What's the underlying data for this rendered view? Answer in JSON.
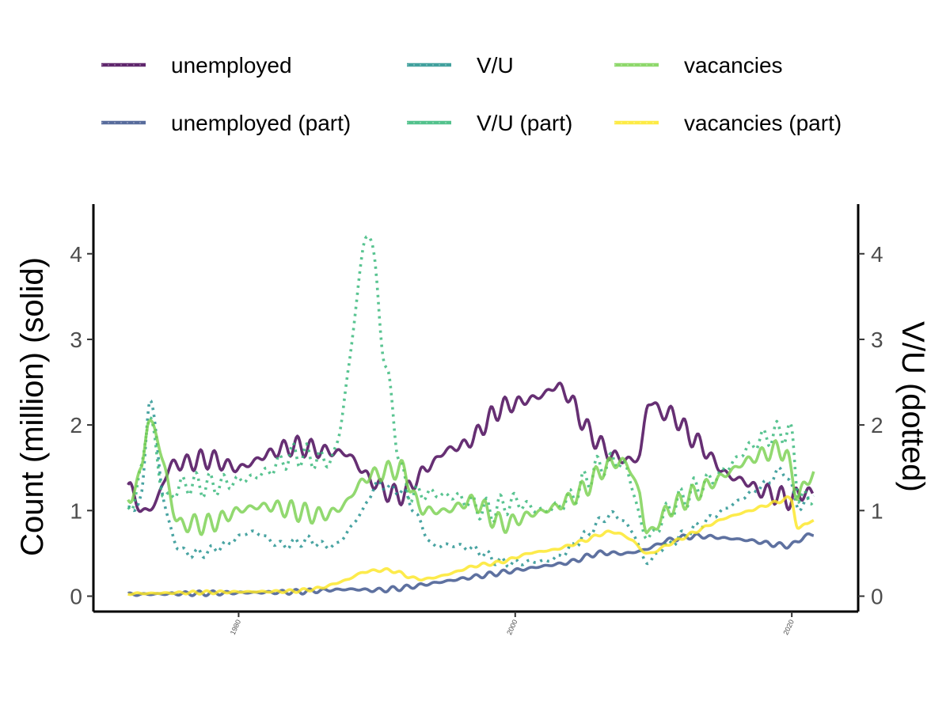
{
  "chart_data": {
    "type": "line",
    "title": "",
    "xlabel": "",
    "ylabel_left": "Count (million) (solid)",
    "ylabel_right": "V/U (dotted)",
    "xlim": [
      1969.5,
      2024.8
    ],
    "ylim": [
      -0.18,
      4.58
    ],
    "x_ticks": [
      1980,
      2000,
      2020
    ],
    "y_ticks": [
      0,
      1,
      2,
      3,
      4
    ],
    "y_ticks_right": [
      0,
      1,
      2,
      3,
      4
    ],
    "grid": false,
    "legend_position": "top",
    "series": [
      {
        "name": "unemployed",
        "axis": "left",
        "line_style": "solid",
        "color": "#440154",
        "wave": 0.12,
        "points": [
          [
            1972.0,
            1.3
          ],
          [
            1973.0,
            1.0
          ],
          [
            1974.0,
            1.1
          ],
          [
            1975.0,
            1.5
          ],
          [
            1976.0,
            1.55
          ],
          [
            1978.0,
            1.6
          ],
          [
            1980.0,
            1.5
          ],
          [
            1982.0,
            1.65
          ],
          [
            1984.0,
            1.75
          ],
          [
            1986.0,
            1.7
          ],
          [
            1988.0,
            1.65
          ],
          [
            1989.0,
            1.45
          ],
          [
            1990.0,
            1.3
          ],
          [
            1991.0,
            1.2
          ],
          [
            1992.0,
            1.2
          ],
          [
            1993.0,
            1.4
          ],
          [
            1994.0,
            1.55
          ],
          [
            1995.0,
            1.7
          ],
          [
            1996.0,
            1.75
          ],
          [
            1997.0,
            1.85
          ],
          [
            1998.0,
            2.05
          ],
          [
            1999.0,
            2.2
          ],
          [
            2000.0,
            2.25
          ],
          [
            2001.0,
            2.3
          ],
          [
            2002.0,
            2.35
          ],
          [
            2003.0,
            2.45
          ],
          [
            2004.0,
            2.3
          ],
          [
            2005.0,
            2.0
          ],
          [
            2006.0,
            1.8
          ],
          [
            2007.0,
            1.65
          ],
          [
            2008.0,
            1.6
          ],
          [
            2009.0,
            1.65
          ],
          [
            2009.6,
            2.25
          ],
          [
            2010.5,
            2.15
          ],
          [
            2011.5,
            2.1
          ],
          [
            2012.5,
            1.9
          ],
          [
            2013.5,
            1.75
          ],
          [
            2014.5,
            1.55
          ],
          [
            2015.5,
            1.4
          ],
          [
            2016.5,
            1.35
          ],
          [
            2017.5,
            1.25
          ],
          [
            2018.5,
            1.2
          ],
          [
            2019.5,
            1.15
          ],
          [
            2020.0,
            1.12
          ],
          [
            2020.5,
            1.2
          ],
          [
            2021.5,
            1.2
          ]
        ]
      },
      {
        "name": "unemployed (part)",
        "axis": "left",
        "line_style": "solid",
        "color": "#3b528b",
        "wave": 0.03,
        "points": [
          [
            1972.0,
            0.02
          ],
          [
            1976.0,
            0.03
          ],
          [
            1980.0,
            0.04
          ],
          [
            1984.0,
            0.05
          ],
          [
            1988.0,
            0.08
          ],
          [
            1990.0,
            0.07
          ],
          [
            1992.0,
            0.1
          ],
          [
            1994.0,
            0.15
          ],
          [
            1996.0,
            0.2
          ],
          [
            1998.0,
            0.25
          ],
          [
            2000.0,
            0.3
          ],
          [
            2002.0,
            0.35
          ],
          [
            2004.0,
            0.4
          ],
          [
            2006.0,
            0.5
          ],
          [
            2008.0,
            0.5
          ],
          [
            2009.5,
            0.55
          ],
          [
            2011.0,
            0.65
          ],
          [
            2013.0,
            0.7
          ],
          [
            2015.0,
            0.68
          ],
          [
            2017.0,
            0.65
          ],
          [
            2019.0,
            0.6
          ],
          [
            2020.0,
            0.6
          ],
          [
            2021.0,
            0.7
          ],
          [
            2021.6,
            0.72
          ]
        ]
      },
      {
        "name": "V/U",
        "axis": "right",
        "line_style": "dotted",
        "color": "#21908d",
        "wave": 0.06,
        "points": [
          [
            1972.0,
            1.0
          ],
          [
            1973.0,
            1.2
          ],
          [
            1973.6,
            2.3
          ],
          [
            1974.5,
            1.2
          ],
          [
            1975.5,
            0.6
          ],
          [
            1977.0,
            0.5
          ],
          [
            1979.0,
            0.6
          ],
          [
            1981.0,
            0.75
          ],
          [
            1983.0,
            0.6
          ],
          [
            1985.0,
            0.65
          ],
          [
            1987.0,
            0.6
          ],
          [
            1989.0,
            1.0
          ],
          [
            1990.0,
            1.3
          ],
          [
            1991.0,
            1.25
          ],
          [
            1992.0,
            1.2
          ],
          [
            1993.0,
            0.9
          ],
          [
            1994.0,
            0.6
          ],
          [
            1995.0,
            0.6
          ],
          [
            1997.0,
            0.55
          ],
          [
            1999.0,
            0.4
          ],
          [
            2001.0,
            0.4
          ],
          [
            2003.0,
            0.45
          ],
          [
            2005.0,
            0.7
          ],
          [
            2007.0,
            0.95
          ],
          [
            2008.5,
            0.75
          ],
          [
            2009.5,
            0.4
          ],
          [
            2010.5,
            0.55
          ],
          [
            2012.0,
            0.7
          ],
          [
            2014.0,
            0.9
          ],
          [
            2016.0,
            1.1
          ],
          [
            2018.0,
            1.3
          ],
          [
            2019.5,
            1.45
          ],
          [
            2020.5,
            1.05
          ],
          [
            2021.6,
            1.2
          ]
        ]
      },
      {
        "name": "V/U (part)",
        "axis": "right",
        "line_style": "dotted",
        "color": "#35b779",
        "wave": 0.15,
        "points": [
          [
            1972.0,
            0.95
          ],
          [
            1973.0,
            1.5
          ],
          [
            1973.6,
            2.1
          ],
          [
            1974.5,
            1.2
          ],
          [
            1976.0,
            1.3
          ],
          [
            1978.0,
            1.3
          ],
          [
            1980.0,
            1.35
          ],
          [
            1982.0,
            1.45
          ],
          [
            1984.0,
            1.65
          ],
          [
            1986.0,
            1.6
          ],
          [
            1987.0,
            1.7
          ],
          [
            1988.0,
            2.7
          ],
          [
            1988.8,
            3.8
          ],
          [
            1989.5,
            4.25
          ],
          [
            1990.3,
            3.1
          ],
          [
            1991.0,
            2.3
          ],
          [
            1992.0,
            1.3
          ],
          [
            1994.0,
            1.2
          ],
          [
            1996.0,
            1.15
          ],
          [
            1998.0,
            1.0
          ],
          [
            2000.0,
            1.1
          ],
          [
            2002.0,
            1.0
          ],
          [
            2004.0,
            1.15
          ],
          [
            2006.0,
            1.5
          ],
          [
            2008.0,
            1.5
          ],
          [
            2009.5,
            0.7
          ],
          [
            2011.0,
            1.0
          ],
          [
            2013.0,
            1.25
          ],
          [
            2015.0,
            1.45
          ],
          [
            2017.0,
            1.75
          ],
          [
            2019.0,
            1.9
          ],
          [
            2020.0,
            1.85
          ],
          [
            2020.5,
            1.2
          ],
          [
            2021.6,
            1.15
          ]
        ]
      },
      {
        "name": "vacancies",
        "axis": "left",
        "line_style": "solid",
        "color": "#7ad151",
        "wave": 0.12,
        "points": [
          [
            1972.0,
            1.1
          ],
          [
            1973.0,
            1.5
          ],
          [
            1973.5,
            2.05
          ],
          [
            1974.5,
            1.6
          ],
          [
            1975.5,
            0.9
          ],
          [
            1976.5,
            0.85
          ],
          [
            1978.0,
            0.85
          ],
          [
            1980.0,
            1.0
          ],
          [
            1982.0,
            1.05
          ],
          [
            1984.0,
            1.0
          ],
          [
            1986.0,
            0.95
          ],
          [
            1987.5,
            1.05
          ],
          [
            1989.0,
            1.35
          ],
          [
            1990.5,
            1.45
          ],
          [
            1992.0,
            1.45
          ],
          [
            1993.0,
            1.05
          ],
          [
            1995.0,
            1.0
          ],
          [
            1997.0,
            1.1
          ],
          [
            1999.0,
            0.85
          ],
          [
            2001.0,
            0.95
          ],
          [
            2003.0,
            1.05
          ],
          [
            2005.0,
            1.25
          ],
          [
            2006.5,
            1.5
          ],
          [
            2008.0,
            1.55
          ],
          [
            2009.0,
            1.2
          ],
          [
            2009.5,
            0.75
          ],
          [
            2011.0,
            1.0
          ],
          [
            2013.0,
            1.2
          ],
          [
            2015.0,
            1.4
          ],
          [
            2017.0,
            1.6
          ],
          [
            2019.5,
            1.7
          ],
          [
            2020.0,
            1.4
          ],
          [
            2020.5,
            1.2
          ],
          [
            2021.6,
            1.45
          ]
        ]
      },
      {
        "name": "vacancies (part)",
        "axis": "left",
        "line_style": "solid",
        "color": "#fde725",
        "wave": 0.02,
        "points": [
          [
            1972.0,
            0.03
          ],
          [
            1976.0,
            0.04
          ],
          [
            1980.0,
            0.05
          ],
          [
            1984.0,
            0.06
          ],
          [
            1986.0,
            0.1
          ],
          [
            1988.0,
            0.2
          ],
          [
            1989.0,
            0.28
          ],
          [
            1991.0,
            0.3
          ],
          [
            1993.0,
            0.2
          ],
          [
            1995.0,
            0.25
          ],
          [
            1997.0,
            0.35
          ],
          [
            1999.0,
            0.4
          ],
          [
            2001.0,
            0.5
          ],
          [
            2003.0,
            0.55
          ],
          [
            2005.0,
            0.65
          ],
          [
            2007.0,
            0.75
          ],
          [
            2008.5,
            0.65
          ],
          [
            2009.5,
            0.5
          ],
          [
            2011.0,
            0.6
          ],
          [
            2013.0,
            0.75
          ],
          [
            2015.0,
            0.9
          ],
          [
            2017.0,
            1.0
          ],
          [
            2019.0,
            1.1
          ],
          [
            2020.0,
            1.12
          ],
          [
            2020.4,
            0.8
          ],
          [
            2021.0,
            0.85
          ],
          [
            2021.6,
            0.88
          ]
        ]
      }
    ]
  }
}
